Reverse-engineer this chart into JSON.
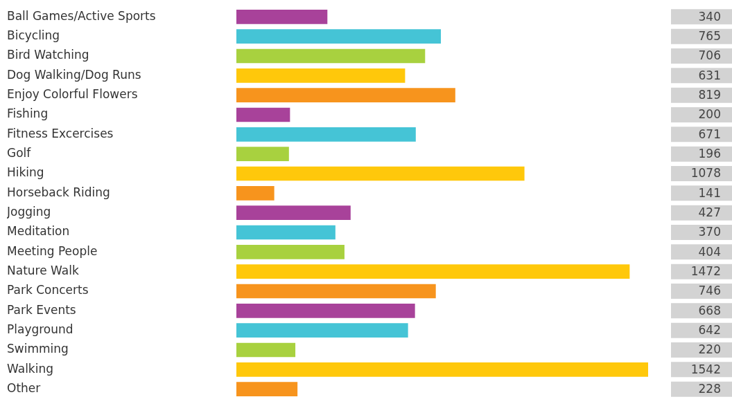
{
  "chart_data": {
    "type": "bar",
    "orientation": "horizontal",
    "data_labels": true,
    "categories": [
      "Ball Games/Active Sports",
      "Bicycling",
      "Bird Watching",
      "Dog Walking/Dog Runs",
      "Enjoy Colorful Flowers",
      "Fishing",
      "Fitness Excercises",
      "Golf",
      "Hiking",
      "Horseback Riding",
      "Jogging",
      "Meditation",
      "Meeting People",
      "Nature Walk",
      "Park Concerts",
      "Park Events",
      "Playground",
      "Swimming",
      "Walking",
      "Other"
    ],
    "values": [
      340,
      765,
      706,
      631,
      819,
      200,
      671,
      196,
      1078,
      141,
      427,
      370,
      404,
      1472,
      746,
      668,
      642,
      220,
      1542,
      228
    ],
    "colors": [
      "#a8429a",
      "#45c4d6",
      "#a8d13f",
      "#ffc80b",
      "#f7941d",
      "#a8429a",
      "#45c4d6",
      "#a8d13f",
      "#ffc80b",
      "#f7941d",
      "#a8429a",
      "#45c4d6",
      "#a8d13f",
      "#ffc80b",
      "#f7941d",
      "#a8429a",
      "#45c4d6",
      "#a8d13f",
      "#ffc80b",
      "#f7941d"
    ]
  }
}
